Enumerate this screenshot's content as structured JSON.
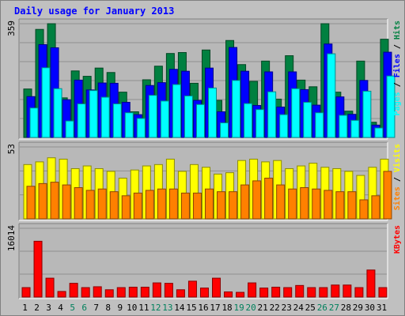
{
  "chart_data": {
    "type": "bar",
    "title": "Daily usage for January 2013",
    "categories": [
      "1",
      "2",
      "3",
      "4",
      "5",
      "6",
      "7",
      "8",
      "9",
      "10",
      "11",
      "12",
      "13",
      "14",
      "15",
      "16",
      "17",
      "18",
      "19",
      "20",
      "21",
      "22",
      "23",
      "24",
      "25",
      "26",
      "27",
      "28",
      "29",
      "30",
      "31"
    ],
    "weekend_days": [
      "5",
      "6",
      "12",
      "13",
      "19",
      "20",
      "26",
      "27"
    ],
    "panels": [
      {
        "max_label": "359",
        "ylim": [
          0,
          359
        ],
        "legend": [
          "Pages",
          "Files",
          "Hits"
        ],
        "series": [
          {
            "name": "Hits",
            "color": "#008040",
            "values": [
              153,
              341,
              359,
              125,
              210,
              193,
              219,
              205,
              143,
              81,
              182,
              225,
              265,
              268,
              171,
              276,
              117,
              306,
              230,
              177,
              241,
              121,
              258,
              181,
              160,
              359,
              143,
              83,
              241,
              48,
              310
            ]
          },
          {
            "name": "Files",
            "color": "#0000ff",
            "values": [
              129,
              293,
              283,
              119,
              181,
              150,
              172,
              171,
              111,
              72,
              164,
              173,
              215,
              209,
              117,
              219,
              81,
              284,
              209,
              101,
              207,
              96,
              207,
              151,
              102,
              295,
              128,
              73,
              180,
              39,
              269
            ]
          },
          {
            "name": "Pages",
            "color": "#00ffff",
            "values": [
              93,
              220,
              154,
              52,
              106,
              148,
              127,
              106,
              78,
              60,
              133,
              115,
              167,
              131,
              104,
              156,
              46,
              180,
              107,
              88,
              144,
              72,
              154,
              111,
              78,
              264,
              70,
              54,
              146,
              30,
              194
            ]
          }
        ]
      },
      {
        "max_label": "53",
        "ylim": [
          0,
          53
        ],
        "legend": [
          "Sites",
          "Visits"
        ],
        "series": [
          {
            "name": "Visits",
            "color": "#ffff00",
            "values": [
              40,
              42,
              45,
              44,
              37,
              39,
              37,
              35,
              30,
              36,
              39,
              40,
              44,
              35,
              40,
              38,
              33,
              34,
              43,
              44,
              42,
              43,
              37,
              39,
              41,
              38,
              37,
              35,
              32,
              38,
              44
            ]
          },
          {
            "name": "Sites",
            "color": "#ff8000",
            "values": [
              24,
              26,
              27,
              25,
              23,
              21,
              22,
              20,
              17,
              19,
              21,
              22,
              22,
              19,
              19,
              22,
              20,
              20,
              25,
              28,
              30,
              25,
              22,
              23,
              22,
              21,
              20,
              20,
              14,
              17,
              35
            ]
          }
        ]
      },
      {
        "max_label": "16014",
        "ylim": [
          0,
          16014
        ],
        "legend": [
          "KBytes"
        ],
        "series": [
          {
            "name": "KBytes",
            "color": "#ff0000",
            "values": [
              2200,
              13000,
              4400,
              1300,
              3200,
              2200,
              2400,
              1700,
              2200,
              2300,
              2300,
              3300,
              3200,
              1700,
              3700,
              2100,
              4400,
              1200,
              1100,
              3300,
              2100,
              2300,
              2200,
              2700,
              2200,
              2200,
              2800,
              2800,
              2200,
              6300,
              2200
            ]
          }
        ]
      }
    ]
  },
  "colors": {
    "frame_bg": "#c0c0c0",
    "plot_bg": "#b8b8b8",
    "grid": "#909090",
    "title": "#0000ff",
    "weekday_label": "#000000",
    "weekend_label": "#00805c",
    "legend_separator": "#000000"
  }
}
